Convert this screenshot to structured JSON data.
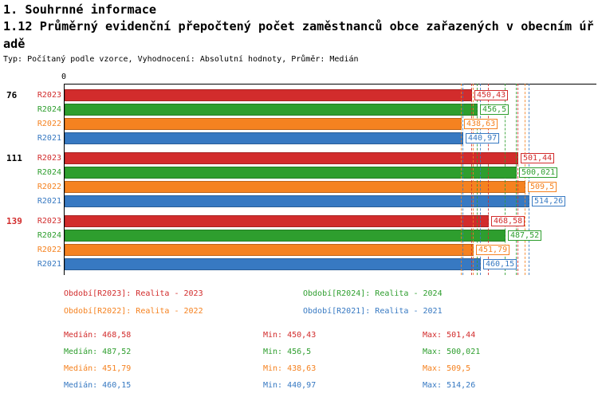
{
  "header": {
    "title": "1. Souhrnné informace",
    "subtitle": "1.12 Průměrný evidenční přepočtený počet zaměstnanců obce zařazených v obecním úřadě",
    "meta": "Typ: Počítaný podle vzorce, Vyhodnocení: Absolutní hodnoty, Průměr: Medián"
  },
  "chart_data": {
    "type": "bar",
    "orientation": "horizontal",
    "title": "1.12 Průměrný evidenční přepočtený počet zaměstnanců obce zařazených v obecním úřadě",
    "axis": {
      "zero_label": "0",
      "xlim": [
        0,
        520
      ],
      "grid": false
    },
    "series_order": [
      "R2023",
      "R2024",
      "R2022",
      "R2021"
    ],
    "colors": {
      "R2023": "#d22c2c",
      "R2024": "#2e9e2e",
      "R2022": "#f58220",
      "R2021": "#3779c2"
    },
    "groups": [
      {
        "id": "76",
        "id_color": "#000000",
        "bars": [
          {
            "series": "R2023",
            "value": 450.43,
            "value_label": "450,43"
          },
          {
            "series": "R2024",
            "value": 456.5,
            "value_label": "456,5"
          },
          {
            "series": "R2022",
            "value": 438.63,
            "value_label": "438,63"
          },
          {
            "series": "R2021",
            "value": 440.97,
            "value_label": "440,97"
          }
        ]
      },
      {
        "id": "111",
        "id_color": "#000000",
        "bars": [
          {
            "series": "R2023",
            "value": 501.44,
            "value_label": "501,44"
          },
          {
            "series": "R2024",
            "value": 500.021,
            "value_label": "500,021"
          },
          {
            "series": "R2022",
            "value": 509.5,
            "value_label": "509,5"
          },
          {
            "series": "R2021",
            "value": 514.26,
            "value_label": "514,26"
          }
        ]
      },
      {
        "id": "139",
        "id_color": "#d22c2c",
        "bars": [
          {
            "series": "R2023",
            "value": 468.58,
            "value_label": "468,58"
          },
          {
            "series": "R2024",
            "value": 487.52,
            "value_label": "487,52"
          },
          {
            "series": "R2022",
            "value": 451.79,
            "value_label": "451,79"
          },
          {
            "series": "R2021",
            "value": 460.15,
            "value_label": "460,15"
          }
        ]
      }
    ],
    "series_stats": [
      {
        "series": "R2023",
        "color": "#d22c2c",
        "median": 468.58,
        "min": 450.43,
        "max": 501.44,
        "median_label": "Medián: 468,58",
        "min_label": "Min: 450,43",
        "max_label": "Max: 501,44"
      },
      {
        "series": "R2024",
        "color": "#2e9e2e",
        "median": 487.52,
        "min": 456.5,
        "max": 500.021,
        "median_label": "Medián: 487,52",
        "min_label": "Min: 456,5",
        "max_label": "Max: 500,021"
      },
      {
        "series": "R2022",
        "color": "#f58220",
        "median": 451.79,
        "min": 438.63,
        "max": 509.5,
        "median_label": "Medián: 451,79",
        "min_label": "Min: 438,63",
        "max_label": "Max: 509,5"
      },
      {
        "series": "R2021",
        "color": "#3779c2",
        "median": 460.15,
        "min": 440.97,
        "max": 514.26,
        "median_label": "Medián: 460,15",
        "min_label": "Min: 440,97",
        "max_label": "Max: 514,26"
      }
    ]
  },
  "legend": {
    "columns": [
      [
        {
          "label": "Období[R2023]: Realita - 2023",
          "color": "#d22c2c"
        },
        {
          "label": "Období[R2022]: Realita - 2022",
          "color": "#f58220"
        }
      ],
      [
        {
          "label": "Období[R2024]: Realita - 2024",
          "color": "#2e9e2e"
        },
        {
          "label": "Období[R2021]: Realita - 2021",
          "color": "#3779c2"
        }
      ]
    ]
  }
}
